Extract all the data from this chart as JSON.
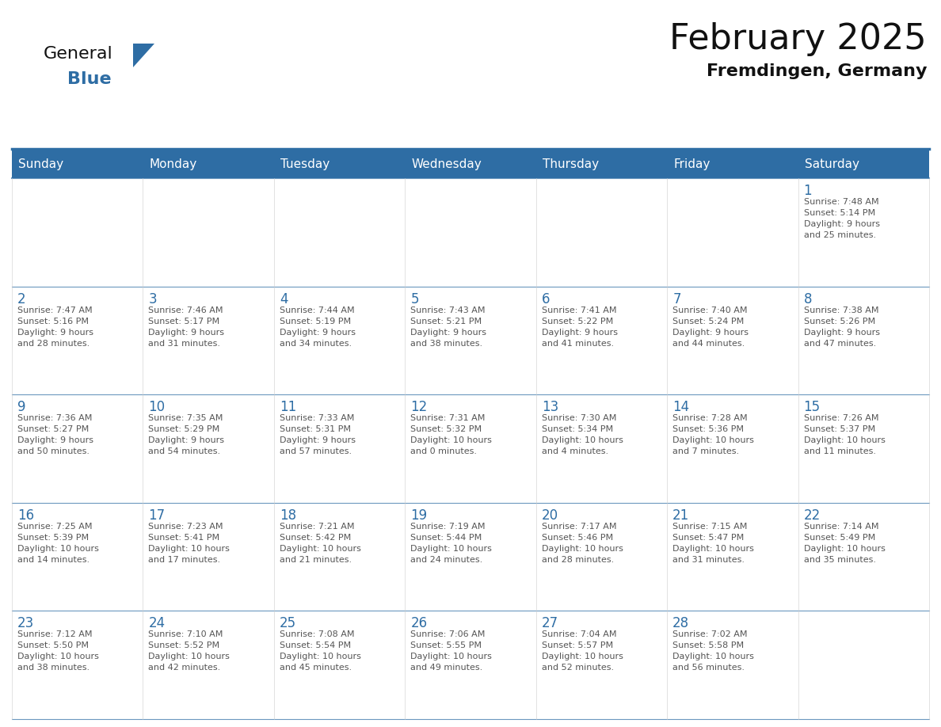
{
  "title": "February 2025",
  "subtitle": "Fremdingen, Germany",
  "header_bg": "#2E6DA4",
  "header_text": "#FFFFFF",
  "day_names": [
    "Sunday",
    "Monday",
    "Tuesday",
    "Wednesday",
    "Thursday",
    "Friday",
    "Saturday"
  ],
  "days": [
    {
      "day": 1,
      "col": 6,
      "row": 0,
      "sunrise": "7:48 AM",
      "sunset": "5:14 PM",
      "daylight": "9 hours and 25 minutes."
    },
    {
      "day": 2,
      "col": 0,
      "row": 1,
      "sunrise": "7:47 AM",
      "sunset": "5:16 PM",
      "daylight": "9 hours and 28 minutes."
    },
    {
      "day": 3,
      "col": 1,
      "row": 1,
      "sunrise": "7:46 AM",
      "sunset": "5:17 PM",
      "daylight": "9 hours and 31 minutes."
    },
    {
      "day": 4,
      "col": 2,
      "row": 1,
      "sunrise": "7:44 AM",
      "sunset": "5:19 PM",
      "daylight": "9 hours and 34 minutes."
    },
    {
      "day": 5,
      "col": 3,
      "row": 1,
      "sunrise": "7:43 AM",
      "sunset": "5:21 PM",
      "daylight": "9 hours and 38 minutes."
    },
    {
      "day": 6,
      "col": 4,
      "row": 1,
      "sunrise": "7:41 AM",
      "sunset": "5:22 PM",
      "daylight": "9 hours and 41 minutes."
    },
    {
      "day": 7,
      "col": 5,
      "row": 1,
      "sunrise": "7:40 AM",
      "sunset": "5:24 PM",
      "daylight": "9 hours and 44 minutes."
    },
    {
      "day": 8,
      "col": 6,
      "row": 1,
      "sunrise": "7:38 AM",
      "sunset": "5:26 PM",
      "daylight": "9 hours and 47 minutes."
    },
    {
      "day": 9,
      "col": 0,
      "row": 2,
      "sunrise": "7:36 AM",
      "sunset": "5:27 PM",
      "daylight": "9 hours and 50 minutes."
    },
    {
      "day": 10,
      "col": 1,
      "row": 2,
      "sunrise": "7:35 AM",
      "sunset": "5:29 PM",
      "daylight": "9 hours and 54 minutes."
    },
    {
      "day": 11,
      "col": 2,
      "row": 2,
      "sunrise": "7:33 AM",
      "sunset": "5:31 PM",
      "daylight": "9 hours and 57 minutes."
    },
    {
      "day": 12,
      "col": 3,
      "row": 2,
      "sunrise": "7:31 AM",
      "sunset": "5:32 PM",
      "daylight": "10 hours and 0 minutes."
    },
    {
      "day": 13,
      "col": 4,
      "row": 2,
      "sunrise": "7:30 AM",
      "sunset": "5:34 PM",
      "daylight": "10 hours and 4 minutes."
    },
    {
      "day": 14,
      "col": 5,
      "row": 2,
      "sunrise": "7:28 AM",
      "sunset": "5:36 PM",
      "daylight": "10 hours and 7 minutes."
    },
    {
      "day": 15,
      "col": 6,
      "row": 2,
      "sunrise": "7:26 AM",
      "sunset": "5:37 PM",
      "daylight": "10 hours and 11 minutes."
    },
    {
      "day": 16,
      "col": 0,
      "row": 3,
      "sunrise": "7:25 AM",
      "sunset": "5:39 PM",
      "daylight": "10 hours and 14 minutes."
    },
    {
      "day": 17,
      "col": 1,
      "row": 3,
      "sunrise": "7:23 AM",
      "sunset": "5:41 PM",
      "daylight": "10 hours and 17 minutes."
    },
    {
      "day": 18,
      "col": 2,
      "row": 3,
      "sunrise": "7:21 AM",
      "sunset": "5:42 PM",
      "daylight": "10 hours and 21 minutes."
    },
    {
      "day": 19,
      "col": 3,
      "row": 3,
      "sunrise": "7:19 AM",
      "sunset": "5:44 PM",
      "daylight": "10 hours and 24 minutes."
    },
    {
      "day": 20,
      "col": 4,
      "row": 3,
      "sunrise": "7:17 AM",
      "sunset": "5:46 PM",
      "daylight": "10 hours and 28 minutes."
    },
    {
      "day": 21,
      "col": 5,
      "row": 3,
      "sunrise": "7:15 AM",
      "sunset": "5:47 PM",
      "daylight": "10 hours and 31 minutes."
    },
    {
      "day": 22,
      "col": 6,
      "row": 3,
      "sunrise": "7:14 AM",
      "sunset": "5:49 PM",
      "daylight": "10 hours and 35 minutes."
    },
    {
      "day": 23,
      "col": 0,
      "row": 4,
      "sunrise": "7:12 AM",
      "sunset": "5:50 PM",
      "daylight": "10 hours and 38 minutes."
    },
    {
      "day": 24,
      "col": 1,
      "row": 4,
      "sunrise": "7:10 AM",
      "sunset": "5:52 PM",
      "daylight": "10 hours and 42 minutes."
    },
    {
      "day": 25,
      "col": 2,
      "row": 4,
      "sunrise": "7:08 AM",
      "sunset": "5:54 PM",
      "daylight": "10 hours and 45 minutes."
    },
    {
      "day": 26,
      "col": 3,
      "row": 4,
      "sunrise": "7:06 AM",
      "sunset": "5:55 PM",
      "daylight": "10 hours and 49 minutes."
    },
    {
      "day": 27,
      "col": 4,
      "row": 4,
      "sunrise": "7:04 AM",
      "sunset": "5:57 PM",
      "daylight": "10 hours and 52 minutes."
    },
    {
      "day": 28,
      "col": 5,
      "row": 4,
      "sunrise": "7:02 AM",
      "sunset": "5:58 PM",
      "daylight": "10 hours and 56 minutes."
    }
  ],
  "num_rows": 5,
  "num_cols": 7,
  "text_color_day": "#2E6DA4",
  "text_color_info": "#555555",
  "line_color": "#2E6DA4",
  "title_fontsize": 32,
  "subtitle_fontsize": 16,
  "header_fontsize": 11,
  "day_num_fontsize": 12,
  "info_fontsize": 8
}
